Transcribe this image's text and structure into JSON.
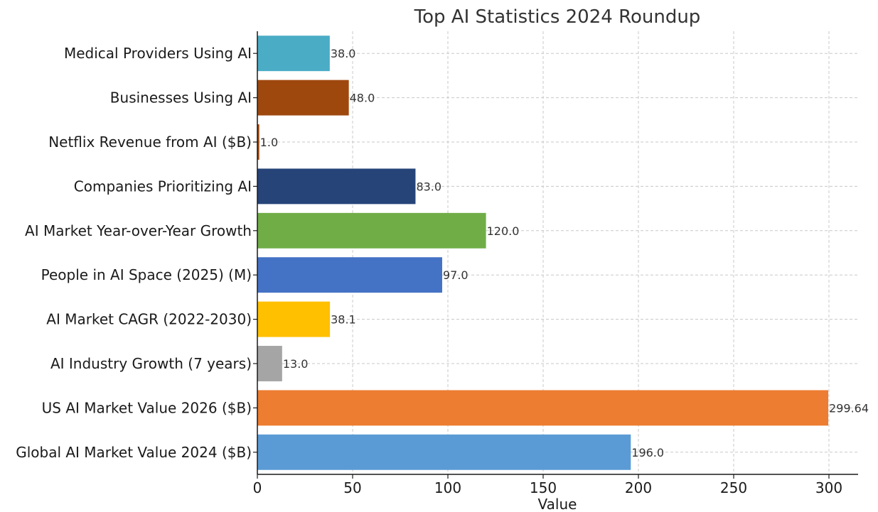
{
  "chart_data": {
    "type": "bar",
    "orientation": "horizontal",
    "title": "Top AI Statistics 2024 Roundup",
    "xlabel": "Value",
    "ylabel": "",
    "xlim": [
      0,
      315
    ],
    "xticks": [
      0,
      50,
      100,
      150,
      200,
      250,
      300
    ],
    "grid": true,
    "categories": [
      "Global AI Market Value 2024 ($B)",
      "US AI Market Value 2026 ($B)",
      "AI Industry Growth (7 years)",
      "AI Market CAGR (2022-2030)",
      "People in AI Space (2025) (M)",
      "AI Market Year-over-Year Growth",
      "Companies Prioritizing AI",
      "Netflix Revenue from AI ($B)",
      "Businesses Using AI",
      "Medical Providers Using AI"
    ],
    "values": [
      196.0,
      299.64,
      13.0,
      38.1,
      97.0,
      120.0,
      83.0,
      1.0,
      48.0,
      38.0
    ],
    "value_labels": [
      "196.0",
      "299.64",
      "13.0",
      "38.1",
      "97.0",
      "120.0",
      "83.0",
      "1.0",
      "48.0",
      "38.0"
    ],
    "colors": [
      "#5b9bd5",
      "#ed7d31",
      "#a5a5a5",
      "#ffc000",
      "#4472c4",
      "#70ad47",
      "#264478",
      "#9e480e",
      "#9e480e",
      "#4bacc6"
    ]
  }
}
